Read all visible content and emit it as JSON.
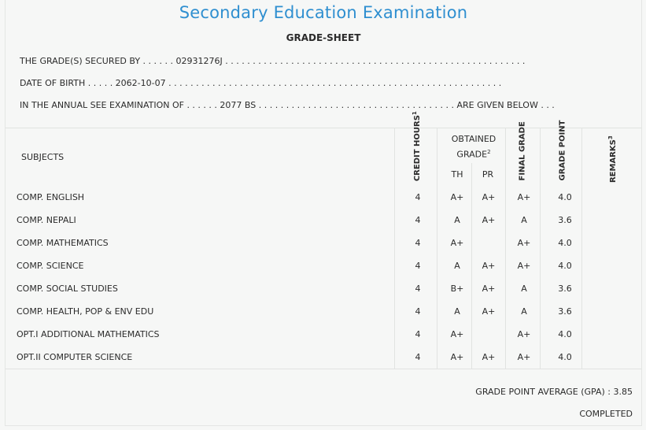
{
  "header": {
    "title": "Secondary Education Examination",
    "subtitle": "GRADE-SHEET"
  },
  "info": {
    "line1": "THE GRADE(S) SECURED BY . . . . . . 02931276J . . . . . . . . . . . . . . . . . . . . . . . . . . . . . . . . . . . . . . . . . . . . . . . . . . . . . . .",
    "line2": "DATE OF BIRTH . . . . . 2062-10-07 . . . . . . . . . . . . . . . . . . . . . . . . . . . . . . . . . . . . . . . . . . . . . . . . . . . . . . . . . . . . .",
    "line3": "IN THE ANNUAL SEE EXAMINATION OF . . . . . . 2077 BS . . . . . . . . . . . . . . . . . . . . . . . . . . . . . . . . . . . . ARE GIVEN BELOW . . ."
  },
  "table_headers": {
    "subjects": "SUBJECTS",
    "credit_hours": "CREDIT HOURS",
    "credit_sup": "1",
    "obtained_grade_line1": "OBTAINED",
    "obtained_grade_line2": "GRADE",
    "obtained_sup": "2",
    "th": "TH",
    "pr": "PR",
    "final_grade": "FINAL GRADE",
    "grade_point": "GRADE POINT",
    "remarks": "REMARKS",
    "remarks_sup": "3"
  },
  "rows": [
    {
      "subject": "COMP. ENGLISH",
      "credit": "4",
      "th": "A+",
      "pr": "A+",
      "final": "A+",
      "gp": "4.0"
    },
    {
      "subject": "COMP. NEPALI",
      "credit": "4",
      "th": "A",
      "pr": "A+",
      "final": "A",
      "gp": "3.6"
    },
    {
      "subject": "COMP. MATHEMATICS",
      "credit": "4",
      "th": "A+",
      "pr": "",
      "final": "A+",
      "gp": "4.0"
    },
    {
      "subject": "COMP. SCIENCE",
      "credit": "4",
      "th": "A",
      "pr": "A+",
      "final": "A+",
      "gp": "4.0"
    },
    {
      "subject": "COMP. SOCIAL STUDIES",
      "credit": "4",
      "th": "B+",
      "pr": "A+",
      "final": "A",
      "gp": "3.6"
    },
    {
      "subject": "COMP. HEALTH, POP & ENV EDU",
      "credit": "4",
      "th": "A",
      "pr": "A+",
      "final": "A",
      "gp": "3.6"
    },
    {
      "subject": "OPT.I ADDITIONAL MATHEMATICS",
      "credit": "4",
      "th": "A+",
      "pr": "",
      "final": "A+",
      "gp": "4.0"
    },
    {
      "subject": "OPT.II COMPUTER SCIENCE",
      "credit": "4",
      "th": "A+",
      "pr": "A+",
      "final": "A+",
      "gp": "4.0"
    }
  ],
  "footer": {
    "gpa": "GRADE POINT AVERAGE (GPA) : 3.85",
    "status": "COMPLETED"
  }
}
